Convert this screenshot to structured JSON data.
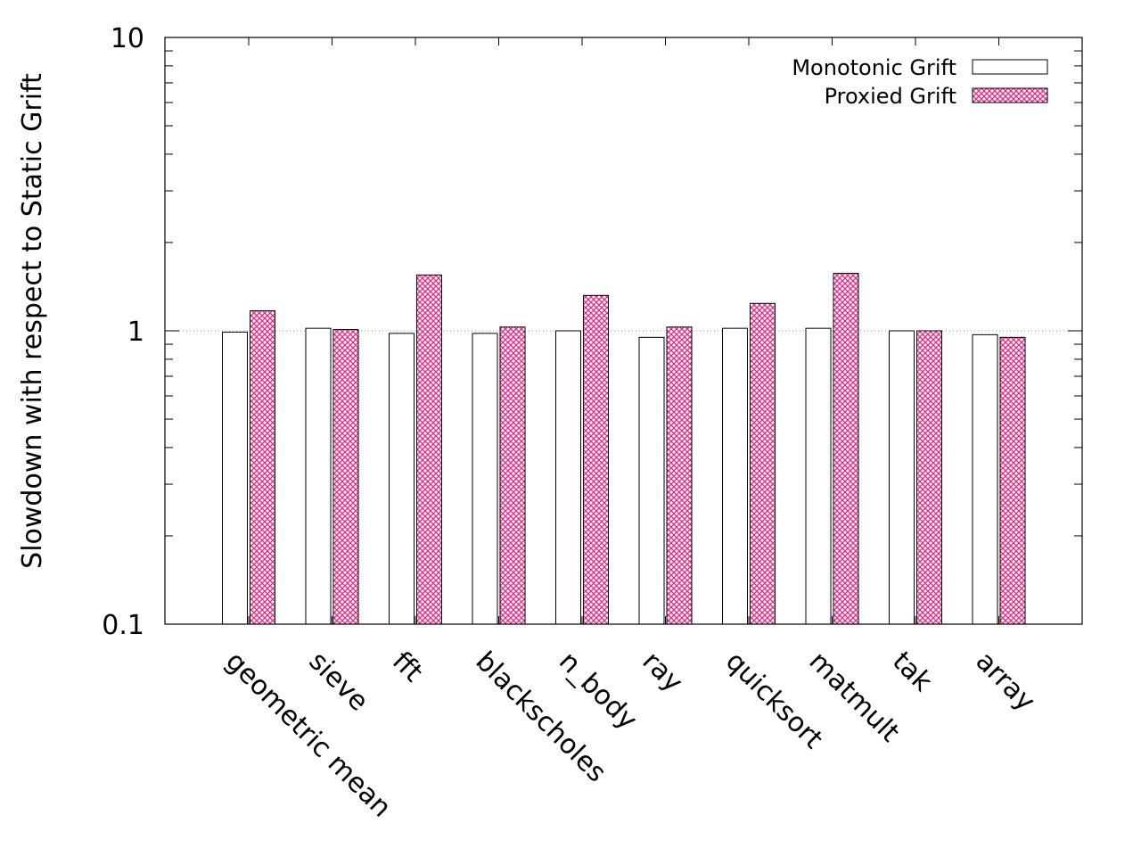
{
  "chart_data": {
    "type": "bar",
    "ylabel": "Slowdown with respect to Static Grift",
    "xlabel": "",
    "yscale": "log",
    "ylim": [
      0.1,
      10
    ],
    "y_ticks": [
      {
        "value": 0.1,
        "label": "0.1"
      },
      {
        "value": 1,
        "label": "1"
      },
      {
        "value": 10,
        "label": "10"
      }
    ],
    "reference_line": 1,
    "legend_position": "top-right",
    "categories": [
      "geometric mean",
      "sieve",
      "fft",
      "blackscholes",
      "n_body",
      "ray",
      "quicksort",
      "matmult",
      "tak",
      "array"
    ],
    "series": [
      {
        "name": "Monotonic Grift",
        "fill": "#ffffff",
        "pattern": "solid",
        "values": [
          0.99,
          1.02,
          0.98,
          0.98,
          1.0,
          0.95,
          1.02,
          1.02,
          1.0,
          0.97
        ]
      },
      {
        "name": "Proxied Grift",
        "fill": "#e0308a",
        "pattern": "crosshatch",
        "values": [
          1.17,
          1.01,
          1.55,
          1.03,
          1.32,
          1.03,
          1.24,
          1.57,
          1.0,
          0.95
        ]
      }
    ]
  }
}
